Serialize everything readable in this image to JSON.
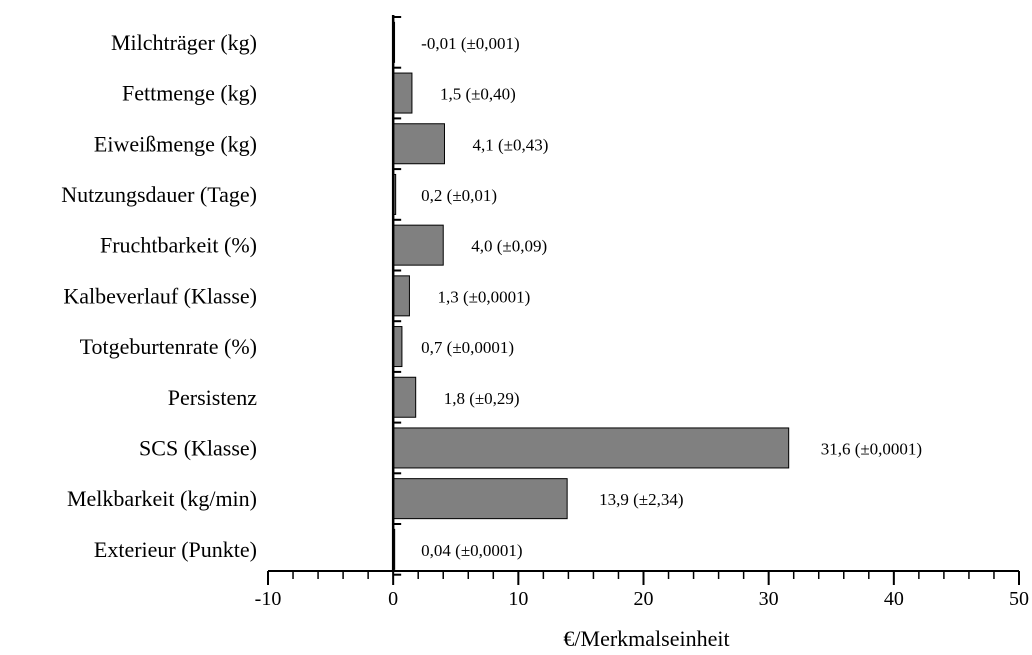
{
  "chart_data": {
    "type": "bar",
    "orientation": "horizontal",
    "categories": [
      "Milchträger (kg)",
      "Fettmenge (kg)",
      "Eiweißmenge (kg)",
      "Nutzungsdauer (Tage)",
      "Fruchtbarkeit (%)",
      "Kalbeverlauf (Klasse)",
      "Totgeburtenrate (%)",
      "Persistenz",
      "SCS (Klasse)",
      "Melkbarkeit (kg/min)",
      "Exterieur (Punkte)"
    ],
    "values": [
      -0.01,
      1.5,
      4.1,
      0.2,
      4.0,
      1.3,
      0.7,
      1.8,
      31.6,
      13.9,
      0.04
    ],
    "data_labels": [
      "-0,01 (±0,001)",
      "1,5 (±0,40)",
      "4,1 (±0,43)",
      "0,2 (±0,01)",
      "4,0 (±0,09)",
      "1,3 (±0,0001)",
      "0,7 (±0,0001)",
      "1,8 (±0,29)",
      "31,6 (±0,0001)",
      "13,9 (±2,34)",
      "0,04 (±0,0001)"
    ],
    "xlabel": "€/Merkmalseinheit",
    "xlim": [
      -10,
      50
    ],
    "xticks": [
      -10,
      0,
      10,
      20,
      30,
      40,
      50
    ],
    "minor_step": 2,
    "grid": false,
    "bar_color": "#808080"
  }
}
